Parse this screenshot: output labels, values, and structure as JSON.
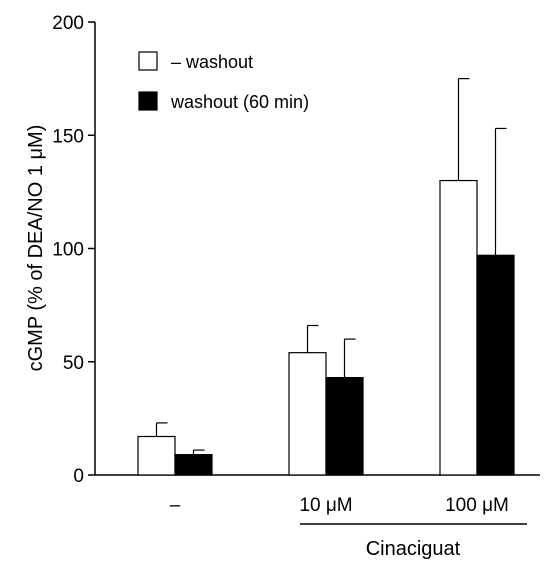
{
  "chart_data": {
    "type": "bar",
    "title": "",
    "ylabel": "cGMP (% of DEA/NO 1 μM)",
    "xlabel": "",
    "ylim": [
      0,
      200
    ],
    "yticks": [
      0,
      50,
      100,
      150,
      200
    ],
    "grid": false,
    "legend_position": "top-left",
    "categories": [
      "–",
      "10 μM",
      "100 μM"
    ],
    "group_label": "Cinaciguat",
    "group_label_spans": [
      "10 μM",
      "100 μM"
    ],
    "series": [
      {
        "name": "– washout",
        "color": "#ffffff",
        "values": [
          17,
          54,
          130
        ],
        "error_upper": [
          6,
          12,
          45
        ]
      },
      {
        "name": "washout (60 min)",
        "color": "#000000",
        "values": [
          9,
          43,
          97
        ],
        "error_upper": [
          2,
          17,
          56
        ]
      }
    ]
  }
}
